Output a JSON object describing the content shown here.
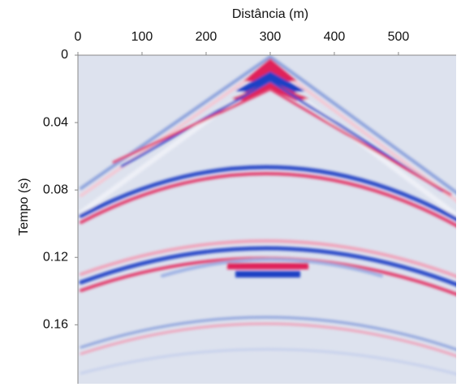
{
  "chart_data": {
    "type": "image",
    "xlabel": "Distância (m)",
    "ylabel": "Tempo (s)",
    "xlim": [
      0,
      590
    ],
    "xticks": [
      0,
      100,
      200,
      300,
      400,
      500
    ],
    "ylim": [
      0,
      0.195
    ],
    "yticks": [
      0,
      0.04,
      0.08,
      0.12,
      0.16
    ],
    "y_inverted": true,
    "x_axis_top": true
  }
}
